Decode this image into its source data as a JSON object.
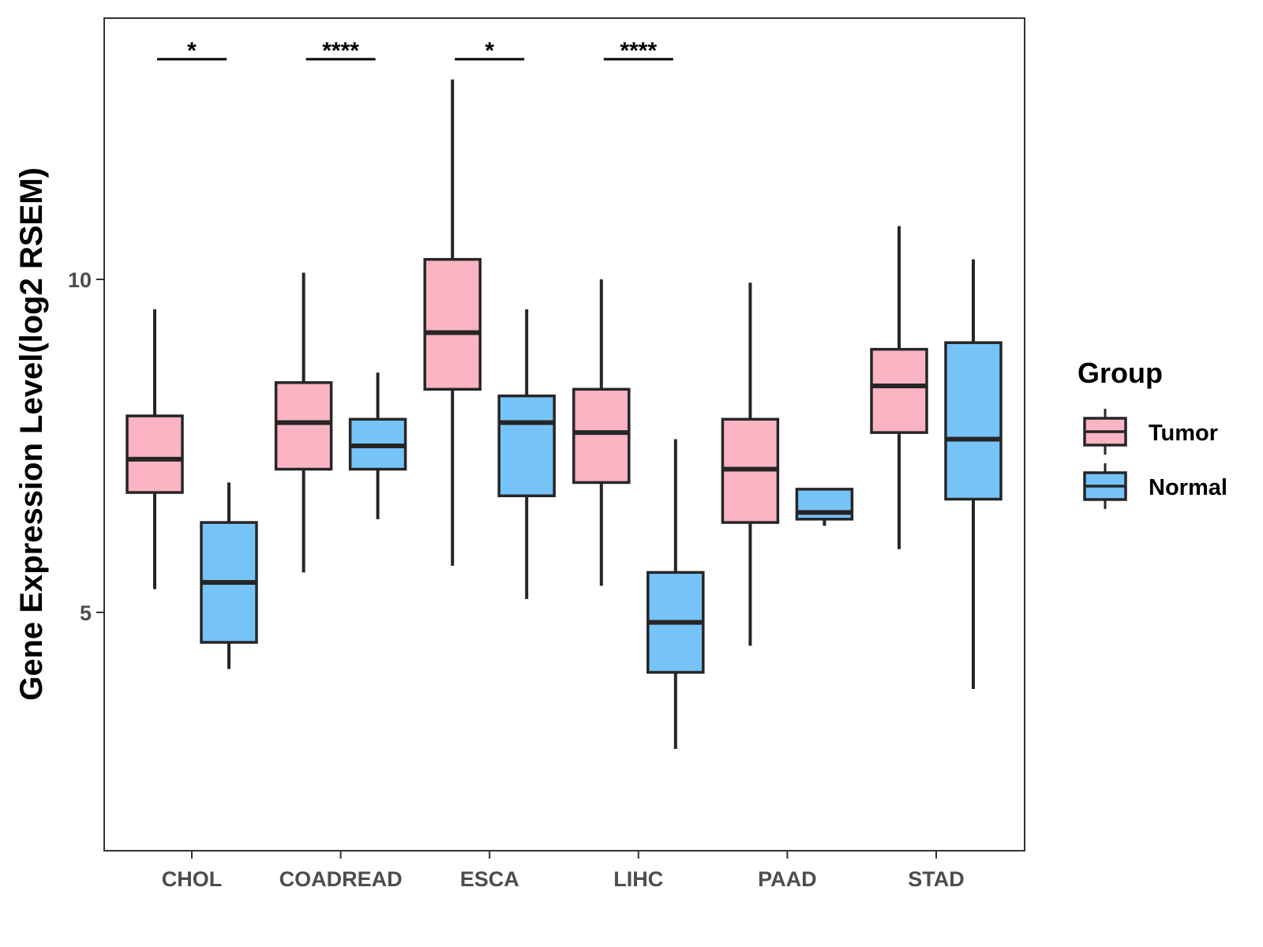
{
  "chart_data": {
    "type": "boxplot",
    "title": "",
    "xlabel": "",
    "ylabel": "Gene Expression Level(log2 RSEM)",
    "ylim": [
      1.5,
      14
    ],
    "yticks": [
      5,
      10
    ],
    "categories": [
      "CHOL",
      "COADREAD",
      "ESCA",
      "LIHC",
      "PAAD",
      "STAD"
    ],
    "groups": [
      "Tumor",
      "Normal"
    ],
    "legend": {
      "title": "Group",
      "position": "right"
    },
    "colors": {
      "Tumor": "#FBB4C4",
      "Normal": "#76C3F8",
      "line": "#262626"
    },
    "series": [
      {
        "name": "Tumor",
        "boxes": [
          {
            "category": "CHOL",
            "min": 5.35,
            "q1": 6.8,
            "median": 7.3,
            "q3": 7.95,
            "max": 9.55
          },
          {
            "category": "COADREAD",
            "min": 5.6,
            "q1": 7.15,
            "median": 7.85,
            "q3": 8.45,
            "max": 10.1
          },
          {
            "category": "ESCA",
            "min": 5.7,
            "q1": 8.35,
            "median": 9.2,
            "q3": 10.3,
            "max": 13.0
          },
          {
            "category": "LIHC",
            "min": 5.4,
            "q1": 6.95,
            "median": 7.7,
            "q3": 8.35,
            "max": 10.0
          },
          {
            "category": "PAAD",
            "min": 4.5,
            "q1": 6.35,
            "median": 7.15,
            "q3": 7.9,
            "max": 9.95
          },
          {
            "category": "STAD",
            "min": 5.95,
            "q1": 7.7,
            "median": 8.4,
            "q3": 8.95,
            "max": 10.8
          }
        ]
      },
      {
        "name": "Normal",
        "boxes": [
          {
            "category": "CHOL",
            "min": 4.15,
            "q1": 4.55,
            "median": 5.45,
            "q3": 6.35,
            "max": 6.95
          },
          {
            "category": "COADREAD",
            "min": 6.4,
            "q1": 7.15,
            "median": 7.5,
            "q3": 7.9,
            "max": 8.6
          },
          {
            "category": "ESCA",
            "min": 5.2,
            "q1": 6.75,
            "median": 7.85,
            "q3": 8.25,
            "max": 9.55
          },
          {
            "category": "LIHC",
            "min": 2.95,
            "q1": 4.1,
            "median": 4.85,
            "q3": 5.6,
            "max": 7.6
          },
          {
            "category": "PAAD",
            "min": 6.3,
            "q1": 6.4,
            "median": 6.5,
            "q3": 6.85,
            "max": 6.85
          },
          {
            "category": "STAD",
            "min": 3.85,
            "q1": 6.7,
            "median": 7.6,
            "q3": 9.05,
            "max": 10.3
          }
        ]
      }
    ],
    "annotations": [
      {
        "category": "CHOL",
        "label": "*"
      },
      {
        "category": "COADREAD",
        "label": "****"
      },
      {
        "category": "ESCA",
        "label": "*"
      },
      {
        "category": "LIHC",
        "label": "****"
      }
    ]
  }
}
